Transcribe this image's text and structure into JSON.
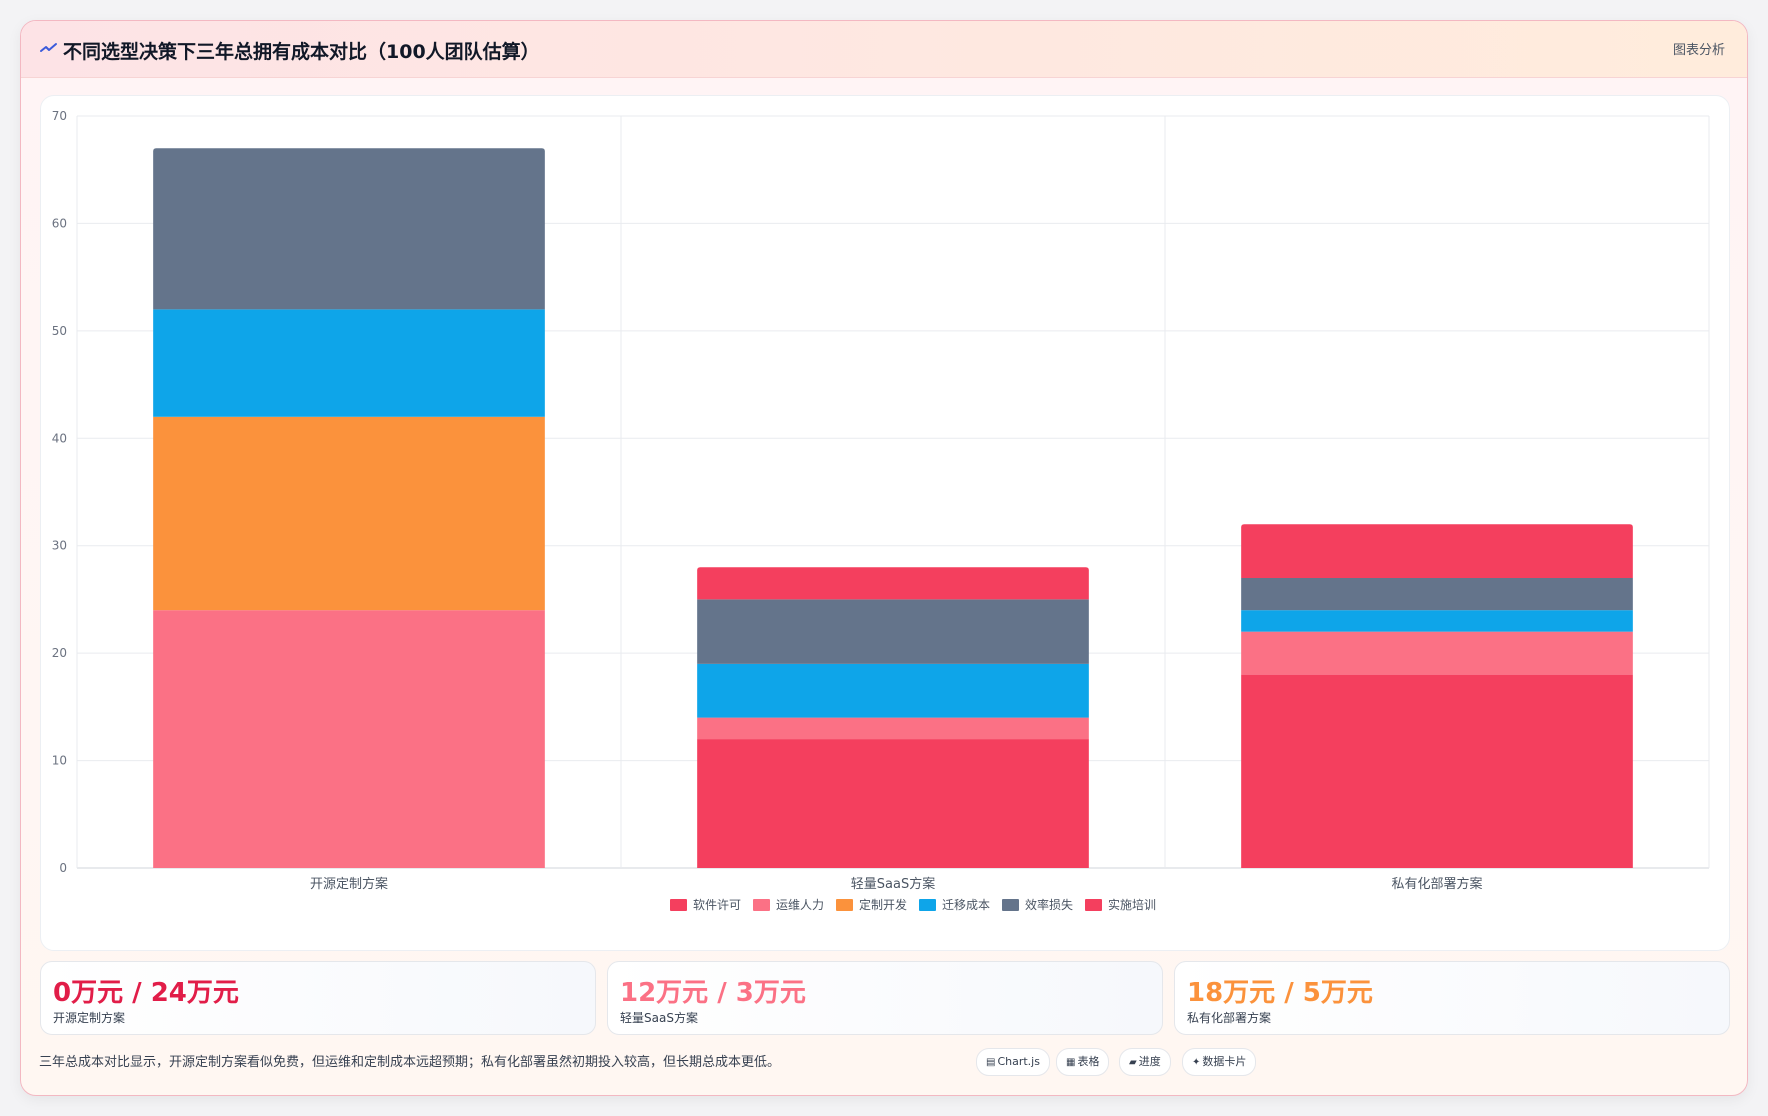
{
  "header": {
    "title": "不同选型决策下三年总拥有成本对比（100人团队估算）",
    "icon": "trend-line-icon",
    "action_label": "图表分析"
  },
  "chart_data": {
    "type": "bar",
    "stacked": true,
    "categories": [
      "开源定制方案",
      "轻量SaaS方案",
      "私有化部署方案"
    ],
    "series": [
      {
        "name": "软件许可",
        "color": "#f43f5e",
        "values": [
          0,
          12,
          18
        ]
      },
      {
        "name": "运维人力",
        "color": "#fb7185",
        "values": [
          24,
          2,
          4
        ]
      },
      {
        "name": "定制开发",
        "color": "#fb923c",
        "values": [
          18,
          0,
          0
        ]
      },
      {
        "name": "迁移成本",
        "color": "#0ea5e9",
        "values": [
          10,
          5,
          2
        ]
      },
      {
        "name": "效率损失",
        "color": "#64748b",
        "values": [
          15,
          6,
          3
        ]
      },
      {
        "name": "实施培训",
        "color": "#f43f5e",
        "values": [
          0,
          3,
          5
        ]
      }
    ],
    "ylim": [
      0,
      70
    ],
    "yticks": [
      0,
      10,
      20,
      30,
      40,
      50,
      60,
      70
    ],
    "grid": true,
    "legend_position": "bottom"
  },
  "stats": [
    {
      "value": "0万元 / 24万元",
      "label": "开源定制方案",
      "color": "#e11d48"
    },
    {
      "value": "12万元 / 3万元",
      "label": "轻量SaaS方案",
      "color": "#fb7185"
    },
    {
      "value": "18万元 / 5万元",
      "label": "私有化部署方案",
      "color": "#fb923c"
    }
  ],
  "footer": {
    "note": "三年总成本对比显示，开源定制方案看似免费，但运维和定制成本远超预期；私有化部署虽然初期投入较高，但长期总成本更低。",
    "pills": [
      {
        "icon": "chart-icon",
        "glyph": "▤",
        "label": "Chart.js"
      },
      {
        "icon": "table-icon",
        "glyph": "▦",
        "label": "表格"
      },
      {
        "icon": "progress-icon",
        "glyph": "▰",
        "label": "进度"
      },
      {
        "icon": "sparkle-icon",
        "glyph": "✦",
        "label": "数据卡片"
      }
    ]
  }
}
